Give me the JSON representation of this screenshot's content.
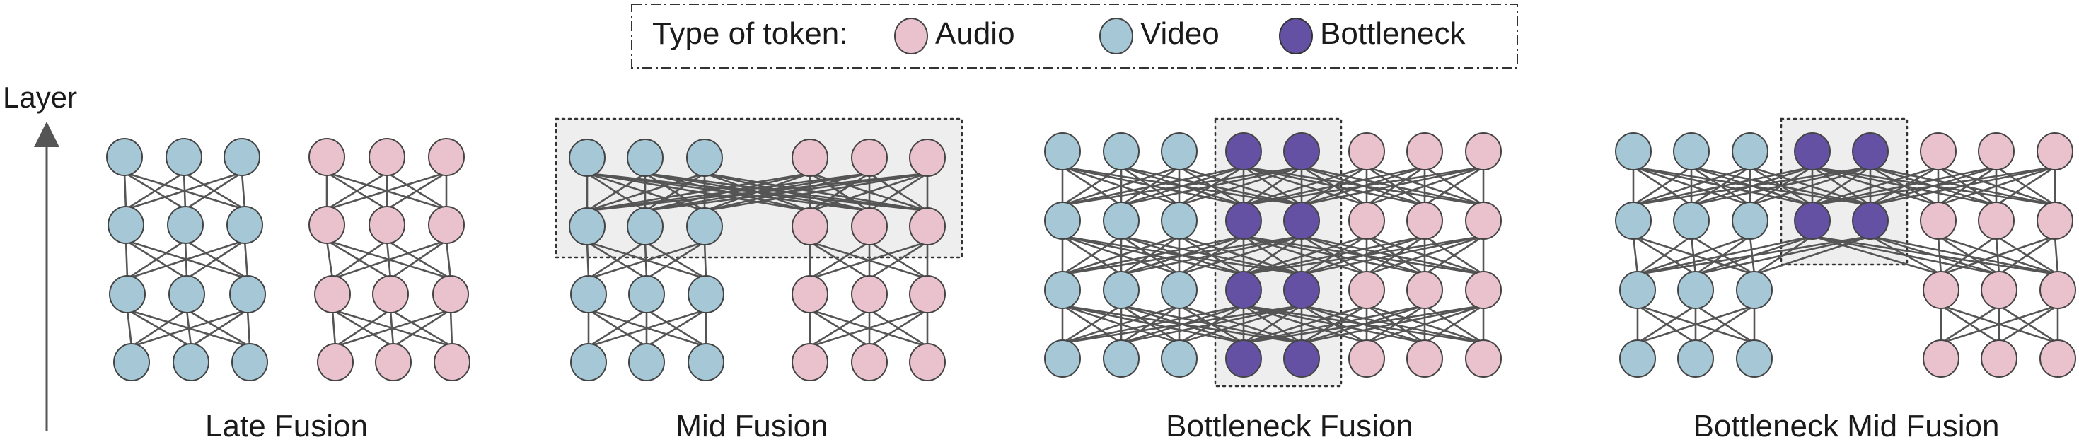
{
  "legend": {
    "title": "Type of token:",
    "items": [
      {
        "key": "audio",
        "label": "Audio"
      },
      {
        "key": "video",
        "label": "Video"
      },
      {
        "key": "bottleneck",
        "label": "Bottleneck"
      }
    ]
  },
  "axis": {
    "label": "Layer"
  },
  "colors": {
    "audio": "#e9c2cd",
    "video": "#a6c8d6",
    "bottleneck": "#6551a4",
    "edge": "#555555",
    "box_fill": "#eeeeee",
    "box_stroke": "#333333"
  },
  "panels": [
    {
      "id": "late",
      "title": "Late Fusion"
    },
    {
      "id": "mid",
      "title": "Mid Fusion"
    },
    {
      "id": "bottleneck",
      "title": "Bottleneck Fusion"
    },
    {
      "id": "bottleneck-mid",
      "title": "Bottleneck Mid Fusion"
    }
  ]
}
